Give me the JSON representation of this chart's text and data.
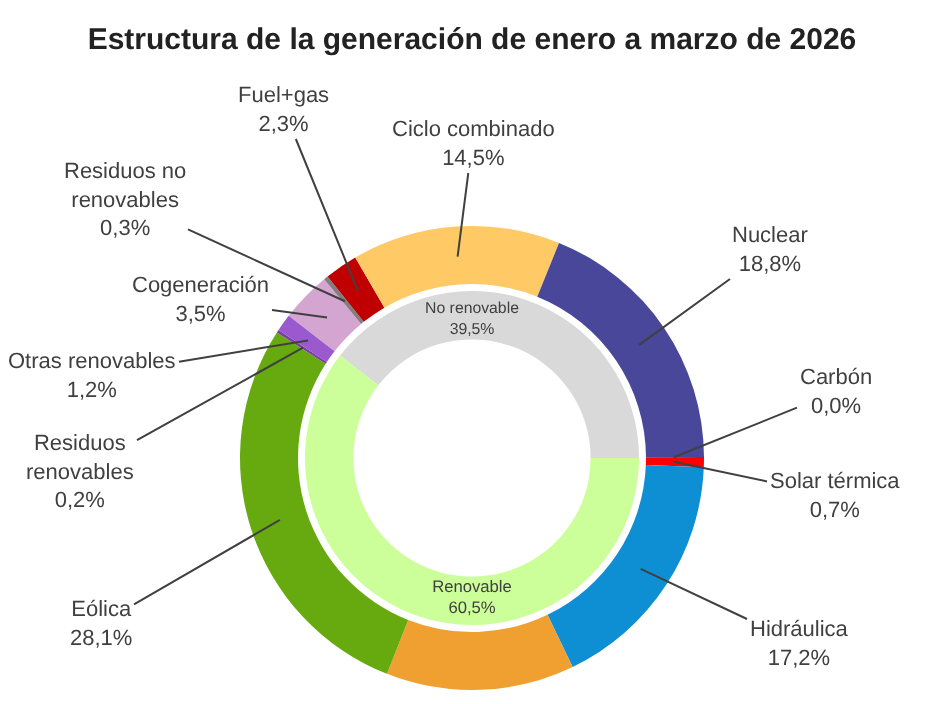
{
  "chart_data": [
    {
      "type": "donut",
      "title": "Estructura de la generación de enero a marzo de 2026",
      "categories": [
        "No renovable",
        "Renovable"
      ],
      "values": [
        39.5,
        60.5
      ],
      "value_labels": [
        "39,5%",
        "60,5%"
      ],
      "colors": [
        "#d9d9d9",
        "#ccff99"
      ]
    },
    {
      "type": "donut",
      "categories": [
        "Cogeneración",
        "Residuos no renovables",
        "Fuel+gas",
        "Ciclo combinado",
        "Nuclear",
        "Carbón",
        "Solar térmica",
        "Hidráulica",
        null,
        "Eólica",
        "Residuos renovables",
        "Otras renovables"
      ],
      "values": [
        3.5,
        0.3,
        2.3,
        14.5,
        18.8,
        0.0,
        0.7,
        17.2,
        13.1,
        28.1,
        0.2,
        1.2
      ],
      "value_labels": [
        "3,5%",
        "0,3%",
        "2,3%",
        "14,5%",
        "18,8%",
        "0,0%",
        "0,7%",
        "17,2%",
        null,
        "28,1%",
        "0,2%",
        "1,2%"
      ],
      "colors": [
        "#d4a5d0",
        "#808080",
        "#c00000",
        "#ffc966",
        "#48479a",
        "#333333",
        "#ff0000",
        "#0f8fd3",
        "#f0a030",
        "#66aa10",
        "#7a3fa0",
        "#9b59d0"
      ]
    }
  ]
}
